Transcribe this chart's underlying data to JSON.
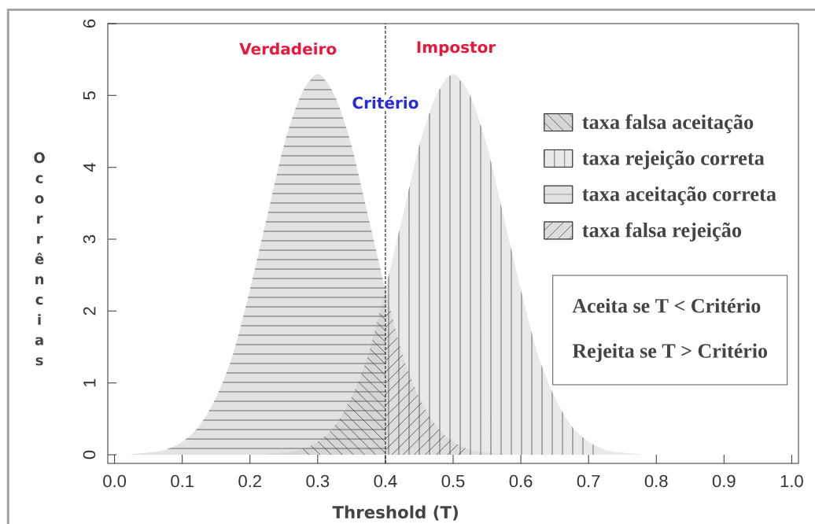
{
  "chart_data": {
    "type": "area",
    "xlabel": "Threshold (T)",
    "ylabel": "Ocorrências",
    "series": [
      {
        "name": "taxa falsa aceitação",
        "color": "#d6d6d6",
        "x": [
          0.225,
          0.25,
          0.275,
          0.3,
          0.325,
          0.35,
          0.375,
          0.4
        ],
        "values": [
          0.01,
          0.03,
          0.07,
          0.18,
          0.4,
          0.8,
          1.4,
          2.3
        ]
      },
      {
        "name": "taxa rejeição correta",
        "color": "#e9e9e9",
        "x": [
          0.4,
          0.425,
          0.45,
          0.475,
          0.5,
          0.525,
          0.55,
          0.575,
          0.6,
          0.625,
          0.65,
          0.675,
          0.7,
          0.725,
          0.75,
          0.775
        ],
        "values": [
          2.3,
          3.3,
          4.3,
          5.0,
          5.3,
          5.0,
          4.3,
          3.3,
          2.3,
          1.4,
          0.8,
          0.4,
          0.18,
          0.07,
          0.03,
          0.01
        ]
      },
      {
        "name": "taxa aceitação correta",
        "color": "#e2e2e2",
        "x": [
          0.025,
          0.05,
          0.075,
          0.1,
          0.125,
          0.15,
          0.175,
          0.2,
          0.225,
          0.25,
          0.275,
          0.3,
          0.325,
          0.35,
          0.375,
          0.4
        ],
        "values": [
          0.01,
          0.03,
          0.07,
          0.18,
          0.4,
          0.8,
          1.4,
          2.3,
          3.3,
          4.3,
          5.0,
          5.3,
          5.0,
          4.3,
          3.3,
          2.3
        ]
      },
      {
        "name": "taxa falsa rejeição",
        "color": "#dddddd",
        "x": [
          0.4,
          0.425,
          0.45,
          0.475,
          0.5,
          0.525,
          0.55,
          0.575
        ],
        "values": [
          2.3,
          1.4,
          0.8,
          0.4,
          0.18,
          0.07,
          0.03,
          0.01
        ]
      }
    ],
    "xlim": [
      -0.01,
      1.01
    ],
    "ylim": [
      -0.12,
      6
    ],
    "xticks": [
      {
        "value": 0,
        "label": "0.0"
      },
      0.1,
      0.2,
      0.3,
      0.4,
      0.5,
      0.6,
      0.7,
      0.8,
      0.9,
      {
        "value": 1,
        "label": "1.0"
      }
    ],
    "yticks": [
      0,
      1,
      2,
      3,
      4,
      5,
      6
    ],
    "ref_lines": [
      {
        "axis": "x",
        "value": 0.4,
        "label": "Critério",
        "line_style": "dashed",
        "color": "#000000"
      }
    ],
    "annotations": [
      "Verdadeiro",
      "Impostor",
      "Aceita se T < Critério",
      "Rejeita se T > Critério"
    ],
    "legend": "top right"
  }
}
